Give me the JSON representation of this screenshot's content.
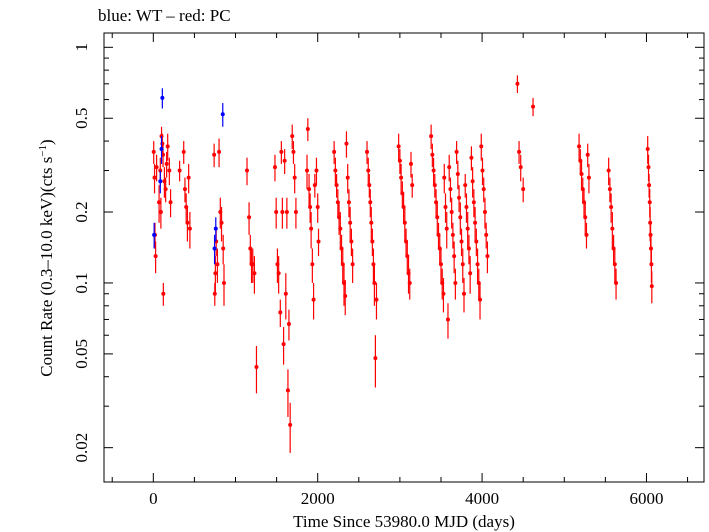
{
  "chart_data": {
    "type": "scatter",
    "title": "blue: WT – red: PC",
    "xlabel": "Time Since 53980.0 MJD (days)",
    "ylabel": "Count Rate (0.3–10.0 keV)(cts s",
    "ylabel_sup": "−1",
    "ylabel_end": ")",
    "y_scale": "log",
    "xlim": [
      -600,
      6700
    ],
    "ylim": [
      0.0143,
      1.15
    ],
    "x_ticks": [
      0,
      2000,
      4000,
      6000
    ],
    "x_tick_labels": [
      "0",
      "2000",
      "4000",
      "6000"
    ],
    "y_ticks": [
      0.02,
      0.05,
      0.1,
      0.2,
      0.5,
      1
    ],
    "y_tick_labels": [
      "0.02",
      "0.05",
      "0.1",
      "0.2",
      "0.5",
      "1"
    ],
    "grid": false,
    "series": [
      {
        "name": "WT",
        "color": "#0000ff",
        "points": [
          [
            10,
            0.16,
            0.02
          ],
          [
            85,
            0.27,
            0.03
          ],
          [
            100,
            0.37,
            0.05
          ],
          [
            110,
            0.61,
            0.06
          ],
          [
            745,
            0.14,
            0.02
          ],
          [
            760,
            0.17,
            0.02
          ],
          [
            845,
            0.52,
            0.06
          ]
        ]
      },
      {
        "name": "PC",
        "color": "#ff0000",
        "points": [
          [
            5,
            0.36,
            0.04
          ],
          [
            15,
            0.28,
            0.04
          ],
          [
            20,
            0.16,
            0.02
          ],
          [
            28,
            0.13,
            0.02
          ],
          [
            40,
            0.31,
            0.04
          ],
          [
            70,
            0.22,
            0.04
          ],
          [
            85,
            0.3,
            0.04
          ],
          [
            92,
            0.2,
            0.03
          ],
          [
            100,
            0.42,
            0.04
          ],
          [
            110,
            0.39,
            0.04
          ],
          [
            118,
            0.35,
            0.04
          ],
          [
            122,
            0.09,
            0.01
          ],
          [
            135,
            0.27,
            0.04
          ],
          [
            150,
            0.25,
            0.03
          ],
          [
            162,
            0.32,
            0.04
          ],
          [
            175,
            0.38,
            0.05
          ],
          [
            195,
            0.3,
            0.04
          ],
          [
            210,
            0.22,
            0.03
          ],
          [
            320,
            0.3,
            0.03
          ],
          [
            370,
            0.36,
            0.04
          ],
          [
            385,
            0.25,
            0.03
          ],
          [
            400,
            0.21,
            0.03
          ],
          [
            415,
            0.18,
            0.03
          ],
          [
            430,
            0.28,
            0.04
          ],
          [
            445,
            0.17,
            0.03
          ],
          [
            740,
            0.35,
            0.04
          ],
          [
            748,
            0.09,
            0.01
          ],
          [
            755,
            0.11,
            0.02
          ],
          [
            765,
            0.15,
            0.02
          ],
          [
            780,
            0.12,
            0.02
          ],
          [
            800,
            0.36,
            0.05
          ],
          [
            815,
            0.2,
            0.03
          ],
          [
            830,
            0.18,
            0.03
          ],
          [
            850,
            0.14,
            0.02
          ],
          [
            860,
            0.1,
            0.02
          ],
          [
            1140,
            0.3,
            0.04
          ],
          [
            1165,
            0.19,
            0.03
          ],
          [
            1180,
            0.14,
            0.02
          ],
          [
            1195,
            0.12,
            0.02
          ],
          [
            1210,
            0.12,
            0.02
          ],
          [
            1230,
            0.11,
            0.02
          ],
          [
            1255,
            0.044,
            0.01
          ],
          [
            1480,
            0.31,
            0.04
          ],
          [
            1495,
            0.2,
            0.03
          ],
          [
            1510,
            0.12,
            0.02
          ],
          [
            1525,
            0.11,
            0.02
          ],
          [
            1545,
            0.075,
            0.01
          ],
          [
            1558,
            0.36,
            0.04
          ],
          [
            1570,
            0.2,
            0.03
          ],
          [
            1585,
            0.055,
            0.01
          ],
          [
            1598,
            0.33,
            0.04
          ],
          [
            1612,
            0.09,
            0.02
          ],
          [
            1625,
            0.2,
            0.03
          ],
          [
            1638,
            0.035,
            0.008
          ],
          [
            1650,
            0.067,
            0.01
          ],
          [
            1665,
            0.025,
            0.006
          ],
          [
            1690,
            0.42,
            0.05
          ],
          [
            1705,
            0.36,
            0.04
          ],
          [
            1720,
            0.28,
            0.04
          ],
          [
            1735,
            0.2,
            0.03
          ],
          [
            1870,
            0.3,
            0.05
          ],
          [
            1880,
            0.45,
            0.05
          ],
          [
            1895,
            0.25,
            0.04
          ],
          [
            1908,
            0.21,
            0.03
          ],
          [
            1920,
            0.17,
            0.03
          ],
          [
            1935,
            0.12,
            0.02
          ],
          [
            1950,
            0.085,
            0.015
          ],
          [
            1965,
            0.26,
            0.03
          ],
          [
            1985,
            0.3,
            0.04
          ],
          [
            2000,
            0.21,
            0.03
          ],
          [
            2010,
            0.15,
            0.02
          ],
          [
            2200,
            0.36,
            0.04
          ],
          [
            2215,
            0.3,
            0.04
          ],
          [
            2230,
            0.26,
            0.03
          ],
          [
            2245,
            0.22,
            0.03
          ],
          [
            2260,
            0.19,
            0.03
          ],
          [
            2275,
            0.17,
            0.03
          ],
          [
            2290,
            0.14,
            0.02
          ],
          [
            2305,
            0.12,
            0.02
          ],
          [
            2320,
            0.1,
            0.02
          ],
          [
            2335,
            0.088,
            0.015
          ],
          [
            2350,
            0.39,
            0.05
          ],
          [
            2365,
            0.28,
            0.04
          ],
          [
            2380,
            0.22,
            0.03
          ],
          [
            2395,
            0.18,
            0.03
          ],
          [
            2410,
            0.15,
            0.02
          ],
          [
            2425,
            0.12,
            0.02
          ],
          [
            2600,
            0.36,
            0.04
          ],
          [
            2615,
            0.3,
            0.04
          ],
          [
            2628,
            0.26,
            0.03
          ],
          [
            2640,
            0.22,
            0.03
          ],
          [
            2652,
            0.18,
            0.03
          ],
          [
            2665,
            0.15,
            0.02
          ],
          [
            2678,
            0.12,
            0.02
          ],
          [
            2690,
            0.1,
            0.02
          ],
          [
            2702,
            0.048,
            0.012
          ],
          [
            2715,
            0.085,
            0.015
          ],
          [
            2985,
            0.38,
            0.05
          ],
          [
            3000,
            0.33,
            0.04
          ],
          [
            3015,
            0.28,
            0.04
          ],
          [
            3030,
            0.24,
            0.03
          ],
          [
            3045,
            0.21,
            0.03
          ],
          [
            3060,
            0.18,
            0.03
          ],
          [
            3075,
            0.15,
            0.02
          ],
          [
            3090,
            0.13,
            0.02
          ],
          [
            3105,
            0.11,
            0.02
          ],
          [
            3120,
            0.1,
            0.015
          ],
          [
            3135,
            0.32,
            0.04
          ],
          [
            3150,
            0.26,
            0.03
          ],
          [
            3380,
            0.42,
            0.05
          ],
          [
            3395,
            0.35,
            0.04
          ],
          [
            3410,
            0.3,
            0.04
          ],
          [
            3425,
            0.26,
            0.03
          ],
          [
            3440,
            0.22,
            0.03
          ],
          [
            3455,
            0.19,
            0.03
          ],
          [
            3470,
            0.16,
            0.02
          ],
          [
            3485,
            0.14,
            0.02
          ],
          [
            3500,
            0.12,
            0.02
          ],
          [
            3515,
            0.1,
            0.015
          ],
          [
            3530,
            0.09,
            0.015
          ],
          [
            3540,
            0.28,
            0.04
          ],
          [
            3555,
            0.21,
            0.03
          ],
          [
            3570,
            0.17,
            0.03
          ],
          [
            3585,
            0.07,
            0.012
          ],
          [
            3600,
            0.31,
            0.04
          ],
          [
            3615,
            0.25,
            0.03
          ],
          [
            3630,
            0.2,
            0.03
          ],
          [
            3645,
            0.16,
            0.02
          ],
          [
            3660,
            0.13,
            0.02
          ],
          [
            3675,
            0.1,
            0.015
          ],
          [
            3690,
            0.36,
            0.04
          ],
          [
            3705,
            0.29,
            0.04
          ],
          [
            3720,
            0.23,
            0.03
          ],
          [
            3735,
            0.19,
            0.03
          ],
          [
            3750,
            0.15,
            0.02
          ],
          [
            3765,
            0.12,
            0.02
          ],
          [
            3780,
            0.09,
            0.015
          ],
          [
            3795,
            0.26,
            0.03
          ],
          [
            3810,
            0.21,
            0.03
          ],
          [
            3825,
            0.17,
            0.03
          ],
          [
            3840,
            0.14,
            0.02
          ],
          [
            3855,
            0.11,
            0.02
          ],
          [
            3870,
            0.34,
            0.04
          ],
          [
            3885,
            0.27,
            0.04
          ],
          [
            3900,
            0.22,
            0.03
          ],
          [
            3915,
            0.18,
            0.03
          ],
          [
            3930,
            0.15,
            0.02
          ],
          [
            3945,
            0.12,
            0.02
          ],
          [
            3960,
            0.1,
            0.015
          ],
          [
            3975,
            0.085,
            0.015
          ],
          [
            3990,
            0.38,
            0.05
          ],
          [
            4005,
            0.3,
            0.04
          ],
          [
            4020,
            0.25,
            0.03
          ],
          [
            4035,
            0.2,
            0.03
          ],
          [
            4050,
            0.16,
            0.02
          ],
          [
            4065,
            0.13,
            0.02
          ],
          [
            4430,
            0.7,
            0.06
          ],
          [
            4450,
            0.36,
            0.04
          ],
          [
            4470,
            0.31,
            0.04
          ],
          [
            4500,
            0.25,
            0.03
          ],
          [
            4620,
            0.56,
            0.05
          ],
          [
            5180,
            0.38,
            0.05
          ],
          [
            5195,
            0.33,
            0.04
          ],
          [
            5210,
            0.29,
            0.04
          ],
          [
            5225,
            0.25,
            0.03
          ],
          [
            5240,
            0.22,
            0.03
          ],
          [
            5255,
            0.19,
            0.03
          ],
          [
            5270,
            0.16,
            0.02
          ],
          [
            5285,
            0.35,
            0.04
          ],
          [
            5300,
            0.28,
            0.04
          ],
          [
            5540,
            0.3,
            0.04
          ],
          [
            5555,
            0.25,
            0.03
          ],
          [
            5570,
            0.21,
            0.03
          ],
          [
            5585,
            0.17,
            0.03
          ],
          [
            5600,
            0.14,
            0.02
          ],
          [
            5615,
            0.12,
            0.02
          ],
          [
            5630,
            0.1,
            0.015
          ],
          [
            6015,
            0.37,
            0.05
          ],
          [
            6025,
            0.31,
            0.04
          ],
          [
            6032,
            0.26,
            0.03
          ],
          [
            6040,
            0.22,
            0.03
          ],
          [
            6045,
            0.18,
            0.03
          ],
          [
            6050,
            0.16,
            0.02
          ],
          [
            6055,
            0.14,
            0.02
          ],
          [
            6060,
            0.12,
            0.02
          ],
          [
            6065,
            0.097,
            0.015
          ]
        ]
      }
    ]
  }
}
